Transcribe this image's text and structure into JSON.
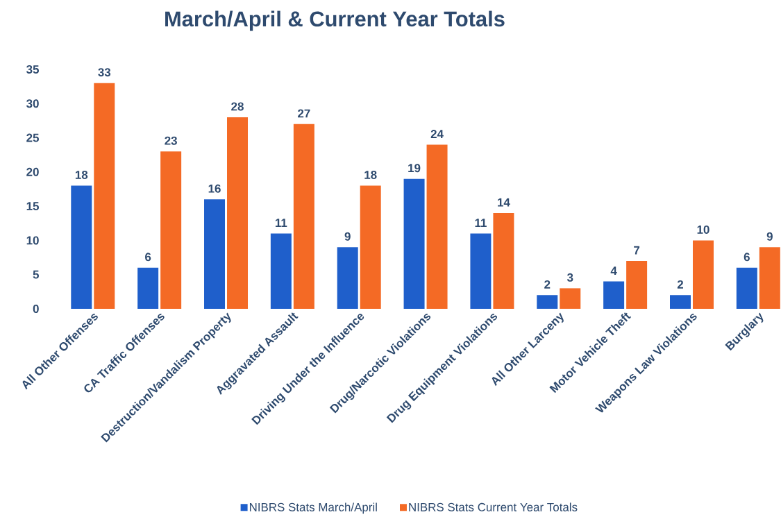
{
  "chart_data": {
    "type": "bar",
    "title": "March/April & Current Year Totals",
    "categories": [
      "All Other Offenses",
      "CA Traffic Offenses",
      "Destruction/Vandalism Property",
      "Aggravated Assault",
      "Driving Under the Influence",
      "Drug/Narcotic Violations",
      "Drug Equipment Violations",
      "All Other Larceny",
      "Motor Vehicle Theft",
      "Weapons Law Violations",
      "Burglary"
    ],
    "series": [
      {
        "name": "NIBRS Stats March/April",
        "color": "#1f5fcb",
        "values": [
          18,
          6,
          16,
          11,
          9,
          19,
          11,
          2,
          4,
          2,
          6
        ]
      },
      {
        "name": "NIBRS Stats Current Year Totals",
        "color": "#f46a25",
        "values": [
          33,
          23,
          28,
          27,
          18,
          24,
          14,
          3,
          7,
          10,
          9
        ]
      }
    ],
    "ylim": [
      0,
      35
    ],
    "yticks": [
      0,
      5,
      10,
      15,
      20,
      25,
      30,
      35
    ],
    "data_labels": true,
    "grid": false,
    "legend": "bottom"
  }
}
